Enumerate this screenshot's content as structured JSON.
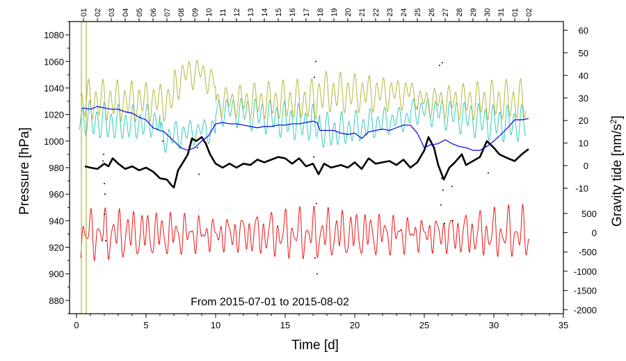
{
  "chart_data": {
    "type": "line",
    "x_range": [
      -0.5,
      35
    ],
    "x_ticks": [
      0,
      5,
      10,
      15,
      20,
      25,
      30,
      35
    ],
    "xlabel": "Time [d]",
    "ylabel_left": "Pressure [hPa]",
    "ylabel_right_prefix": "Gravity tide [nm/s",
    "ylabel_right_sup": "2",
    "ylabel_right_suffix": "]",
    "y_left_range": [
      870,
      1090
    ],
    "y_left_ticks": [
      880,
      900,
      920,
      940,
      960,
      980,
      1000,
      1020,
      1040,
      1060,
      1080
    ],
    "right_axis_upper": {
      "range": [
        -20,
        65
      ],
      "ticks": [
        -10,
        0,
        10,
        20,
        30,
        40,
        50,
        60
      ],
      "note": "mapped to upper panel; 0 aligns with 981.5 hPa"
    },
    "right_axis_lower": {
      "range": [
        -2200,
        720
      ],
      "ticks": [
        -2000,
        -1500,
        -1000,
        -500,
        0,
        500
      ],
      "note": "mapped to lower panel; 0 aligns with 931 hPa"
    },
    "top_axis_labels": [
      "01",
      "02",
      "03",
      "04",
      "05",
      "06",
      "07",
      "08",
      "09",
      "10",
      "11",
      "12",
      "13",
      "14",
      "15",
      "16",
      "17",
      "18",
      "19",
      "20",
      "21",
      "22",
      "23",
      "24",
      "25",
      "26",
      "27",
      "28",
      "29",
      "30",
      "31",
      "01",
      "02"
    ],
    "annotation": "From 2015-07-01 to 2015-08-02",
    "series": [
      {
        "name": "pressure (black)",
        "color": "#000000",
        "points": [
          [
            0.6,
            981
          ],
          [
            1.0,
            980
          ],
          [
            1.5,
            979
          ],
          [
            2.0,
            983
          ],
          [
            2.3,
            981
          ],
          [
            2.6,
            987
          ],
          [
            3.0,
            983
          ],
          [
            3.5,
            979
          ],
          [
            4.0,
            981
          ],
          [
            4.5,
            978
          ],
          [
            5.0,
            980
          ],
          [
            5.5,
            977
          ],
          [
            6.0,
            972
          ],
          [
            6.5,
            971
          ],
          [
            6.8,
            967
          ],
          [
            7.0,
            965
          ],
          [
            7.3,
            978
          ],
          [
            7.6,
            983
          ],
          [
            8.0,
            990
          ],
          [
            8.3,
            1002
          ],
          [
            8.6,
            1000
          ],
          [
            9.0,
            1003
          ],
          [
            9.3,
            998
          ],
          [
            9.6,
            990
          ],
          [
            10.0,
            983
          ],
          [
            10.5,
            980
          ],
          [
            11.0,
            983
          ],
          [
            11.5,
            980
          ],
          [
            12.0,
            983
          ],
          [
            12.5,
            982
          ],
          [
            13.0,
            986
          ],
          [
            13.5,
            984
          ],
          [
            14.0,
            986
          ],
          [
            14.5,
            988
          ],
          [
            15.0,
            987
          ],
          [
            15.5,
            983
          ],
          [
            16.0,
            987
          ],
          [
            16.5,
            981
          ],
          [
            17.0,
            983
          ],
          [
            17.4,
            975
          ],
          [
            17.8,
            983
          ],
          [
            18.3,
            980
          ],
          [
            19.0,
            982
          ],
          [
            19.5,
            980
          ],
          [
            20.0,
            984
          ],
          [
            20.5,
            979
          ],
          [
            21.0,
            987
          ],
          [
            21.5,
            983
          ],
          [
            22.0,
            984
          ],
          [
            22.5,
            985
          ],
          [
            23.0,
            982
          ],
          [
            23.5,
            986
          ],
          [
            24.0,
            980
          ],
          [
            24.5,
            984
          ],
          [
            25.0,
            993
          ],
          [
            25.3,
            1003
          ],
          [
            25.7,
            995
          ],
          [
            26.0,
            982
          ],
          [
            26.4,
            971
          ],
          [
            26.8,
            980
          ],
          [
            27.2,
            984
          ],
          [
            27.7,
            990
          ],
          [
            28.0,
            982
          ],
          [
            28.5,
            985
          ],
          [
            29.0,
            988
          ],
          [
            29.5,
            1000
          ],
          [
            30.0,
            995
          ],
          [
            30.4,
            990
          ],
          [
            31.0,
            987
          ],
          [
            31.5,
            985
          ],
          [
            32.0,
            990
          ],
          [
            32.5,
            994
          ]
        ]
      },
      {
        "name": "pressure (blue)",
        "color": "#1010e0",
        "points": [
          [
            0.4,
            1025
          ],
          [
            1.0,
            1024
          ],
          [
            1.5,
            1026
          ],
          [
            2.0,
            1025
          ],
          [
            2.5,
            1024
          ],
          [
            3.0,
            1024
          ],
          [
            3.5,
            1022
          ],
          [
            4.0,
            1021
          ],
          [
            4.5,
            1018
          ],
          [
            5.0,
            1016
          ],
          [
            5.5,
            1010
          ],
          [
            6.0,
            1008
          ],
          [
            6.3,
            1007
          ],
          [
            7.0,
            1000
          ],
          [
            7.5,
            995
          ],
          [
            8.0,
            993
          ],
          [
            8.5,
            995
          ],
          [
            9.0,
            1000
          ],
          [
            9.5,
            1004
          ],
          [
            10.0,
            1013
          ],
          [
            10.5,
            1014
          ],
          [
            11.0,
            1013
          ],
          [
            11.5,
            1013
          ],
          [
            12.0,
            1012
          ],
          [
            12.5,
            1011
          ],
          [
            13.0,
            1010
          ],
          [
            13.5,
            1011
          ],
          [
            14.0,
            1011
          ],
          [
            14.5,
            1012
          ],
          [
            15.0,
            1012
          ],
          [
            15.5,
            1013
          ],
          [
            16.0,
            1013
          ],
          [
            16.5,
            1014
          ],
          [
            17.0,
            1015
          ],
          [
            17.3,
            1014
          ],
          [
            17.5,
            1008
          ],
          [
            18.0,
            1008
          ],
          [
            18.5,
            1008
          ],
          [
            19.0,
            1006
          ],
          [
            19.5,
            1005
          ],
          [
            20.0,
            1006
          ],
          [
            20.5,
            1002
          ],
          [
            21.0,
            1007
          ],
          [
            21.5,
            1008
          ],
          [
            22.0,
            1009
          ],
          [
            22.5,
            1008
          ],
          [
            23.0,
            1010
          ],
          [
            23.5,
            1012
          ],
          [
            24.0,
            1012
          ],
          [
            24.5,
            1006
          ],
          [
            25.0,
            995
          ],
          [
            25.4,
            997
          ],
          [
            26.0,
            998
          ],
          [
            26.5,
            1001
          ],
          [
            27.0,
            998
          ],
          [
            27.5,
            996
          ],
          [
            28.0,
            995
          ],
          [
            28.5,
            993
          ],
          [
            29.0,
            993
          ],
          [
            29.5,
            996
          ],
          [
            30.0,
            1000
          ],
          [
            30.5,
            1005
          ],
          [
            31.0,
            1010
          ],
          [
            31.5,
            1016
          ],
          [
            32.0,
            1016
          ],
          [
            32.5,
            1017
          ]
        ]
      }
    ]
  }
}
